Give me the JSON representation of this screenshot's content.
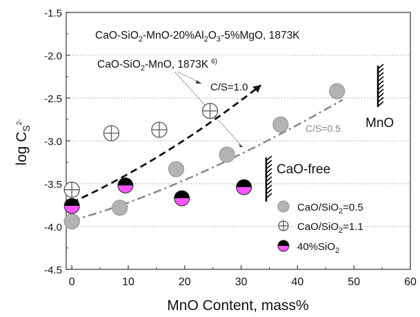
{
  "chart_data": {
    "type": "scatter",
    "title_main": "CaO-SiO",
    "title_sub2a": "2",
    "title_mid": "-MnO-20%Al",
    "title_sub2b": "2",
    "title_O3": "O",
    "title_sub3": "3",
    "title_end": "-5%MgO, 1873K",
    "ref_label_main": "CaO-SiO",
    "ref_label_sub": "2",
    "ref_label_end": "-MnO, 1873K",
    "ref_label_sup": "6)",
    "xlabel": "MnO Content, mass%",
    "ylabel_log": "log C",
    "ylabel_sub": "S",
    "ylabel_sup": "2-",
    "xlim": [
      -1,
      60
    ],
    "ylim": [
      -4.5,
      -1.5
    ],
    "xticks": [
      "0",
      "10",
      "20",
      "30",
      "40",
      "50",
      "60"
    ],
    "yticks": [
      "-1.5",
      "-2.0",
      "-2.5",
      "-3.0",
      "-3.5",
      "-4.0",
      "-4.5"
    ],
    "grid": "horizontal dotted",
    "line_labels": {
      "cs10": "C/S=1.0",
      "cs05": "C/S=0.5"
    },
    "annotations": {
      "mno": "MnO",
      "cao_free": "CaO-free"
    },
    "legend": {
      "position": "bottom-right",
      "entries": [
        {
          "label": "CaO/SiO",
          "sub": "2",
          "tail": "=0.5"
        },
        {
          "label": "CaO/SiO",
          "sub": "2",
          "tail": "=1.1"
        },
        {
          "label": "40%SiO",
          "sub": "2",
          "tail": ""
        }
      ]
    },
    "series": [
      {
        "name": "CaO/SiO2=0.5",
        "marker": "filled-gray-circle",
        "color": "#b3b3b3",
        "points": [
          [
            0,
            -3.94
          ],
          [
            8.5,
            -3.78
          ],
          [
            18.5,
            -3.33
          ],
          [
            27.5,
            -3.16
          ],
          [
            37,
            -2.81
          ],
          [
            47,
            -2.42
          ]
        ]
      },
      {
        "name": "CaO/SiO2=1.1",
        "marker": "crosshair-circle",
        "color": "#555555",
        "points": [
          [
            0,
            -3.57
          ],
          [
            7,
            -2.91
          ],
          [
            15.5,
            -2.87
          ],
          [
            24.5,
            -2.65
          ]
        ]
      },
      {
        "name": "40%SiO2",
        "marker": "half-black-half-magenta",
        "color": "#ff55ff",
        "points": [
          [
            0,
            -3.76
          ],
          [
            9.5,
            -3.52
          ],
          [
            19.5,
            -3.67
          ],
          [
            30.5,
            -3.54
          ]
        ]
      }
    ],
    "fit_lines": [
      {
        "label": "C/S=1.0",
        "style": "dashed",
        "color": "#111111",
        "from": [
          0,
          -3.72
        ],
        "to": [
          33.5,
          -2.35
        ]
      },
      {
        "label": "C/S=0.5",
        "style": "dash-dot",
        "color": "#8a8a8a",
        "from": [
          0,
          -3.93
        ],
        "to": [
          48,
          -2.52
        ]
      }
    ]
  }
}
